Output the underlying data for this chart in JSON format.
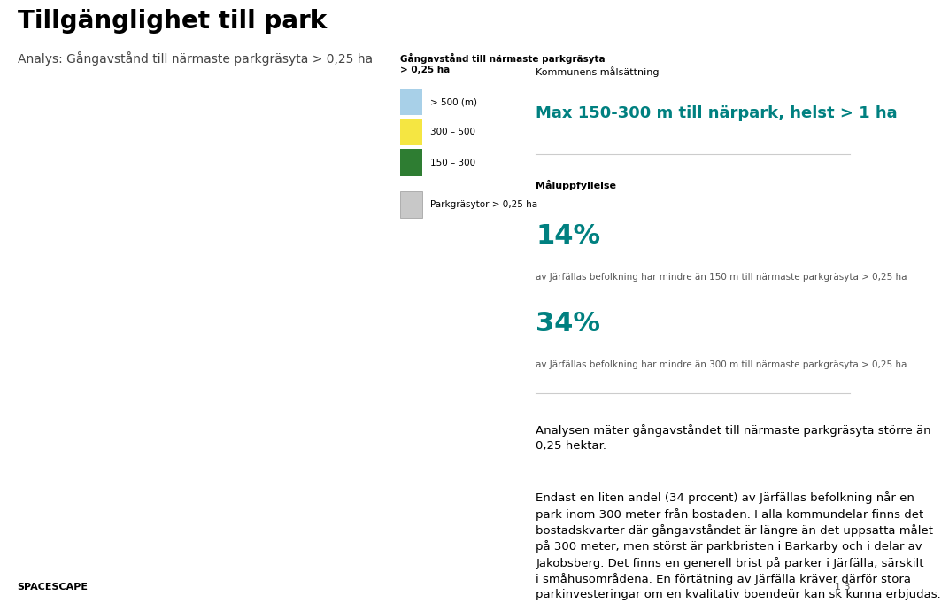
{
  "title": "Tillgänglighet till park",
  "subtitle": "Analys: Gångavstånd till närmaste parkgräsyta > 0,25 ha",
  "legend_title": "Gångavstånd till närmaste parkgräsyta\n> 0,25 ha",
  "legend_items": [
    {
      "label": "> 500 (m)",
      "color": "#a8d0e8"
    },
    {
      "label": "300 – 500",
      "color": "#f5e642"
    },
    {
      "label": "150 – 300",
      "color": "#2e7d32"
    },
    {
      "label": "Parkgräsytor > 0,25 ha",
      "color": "#c8c8c8"
    }
  ],
  "kommunens_label": "Kommunens målsättning",
  "kommunens_heading": "Max 150-300 m till närpark, helst > 1 ha",
  "kommunens_heading_color": "#008080",
  "maluppfyllelse_label": "Måluppfyllelse",
  "percent1": "14%",
  "percent1_color": "#008080",
  "percent1_desc": "av Järfällas befolkning har mindre än 150 m till närmaste parkgräsyta > 0,25 ha",
  "percent2": "34%",
  "percent2_color": "#008080",
  "percent2_desc": "av Järfällas befolkning har mindre än 300 m till närmaste parkgräsyta > 0,25 ha",
  "body_text1": "Analysen mäter gångavståndet till närmaste parkgräsyta större än\n0,25 hektar.",
  "body_text2": "Endast en liten andel (34 procent) av Järfällas befolkning når en\npark inom 300 meter från bostaden. I alla kommundelar finns det\nbostadskvarter där gångavståndet är längre än det uppsatta målet\npå 300 meter, men störst är parkbristen i Barkarby och i delar av\nJakobsberg. Det finns en generell brist på parker i Järfälla, särskilt\ni småhusområdena. En förtätning av Järfälla kräver därför stora\nparkinvesteringar om en kvalitativ boendeür kan sk kunna erbjudas.",
  "footer_left": "SPACESCAPE",
  "footer_right": "1 3",
  "bg_color": "#ffffff",
  "map_placeholder_color": "#f0f0f0",
  "title_fontsize": 20,
  "subtitle_fontsize": 10,
  "body_fontsize": 10,
  "small_fontsize": 8
}
